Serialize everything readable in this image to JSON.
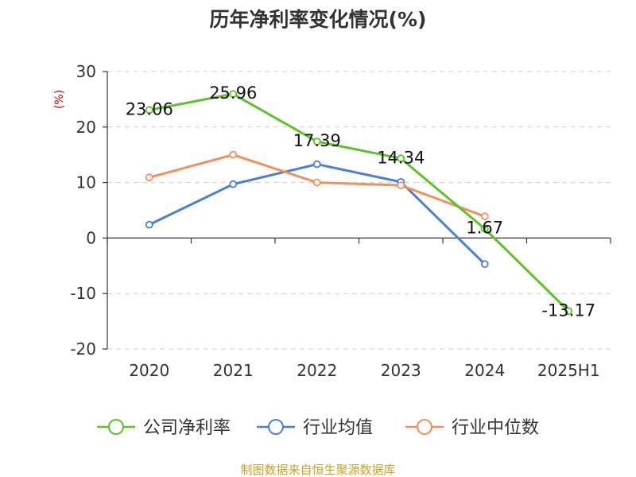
{
  "chart_data": {
    "type": "line",
    "title": "历年净利率变化情况(%)",
    "ylabel": "(%)",
    "categories": [
      "2020",
      "2021",
      "2022",
      "2023",
      "2024",
      "2025H1"
    ],
    "yticks": [
      "30",
      "20",
      "10",
      "0",
      "-10",
      "-20"
    ],
    "ylim": [
      -20,
      30
    ],
    "grid": true,
    "legend_position": "bottom",
    "series": [
      {
        "name": "公司净利率",
        "color": "#5ec12b",
        "values": [
          23.06,
          25.96,
          17.39,
          14.34,
          1.67,
          -13.17
        ],
        "labels": [
          "23.06",
          "25.96",
          "17.39",
          "14.34",
          "1.67",
          "-13.17"
        ]
      },
      {
        "name": "行业均值",
        "color": "#4a7fd4",
        "values": [
          2.4,
          9.7,
          13.3,
          10.1,
          -4.7,
          null
        ]
      },
      {
        "name": "行业中位数",
        "color": "#f2905c",
        "values": [
          10.9,
          15.0,
          10.0,
          9.5,
          3.9,
          null
        ]
      }
    ]
  },
  "source": "制图数据来自恒生聚源数据库",
  "ylabel_color": "#cc0000",
  "source_color": "#c9a227"
}
